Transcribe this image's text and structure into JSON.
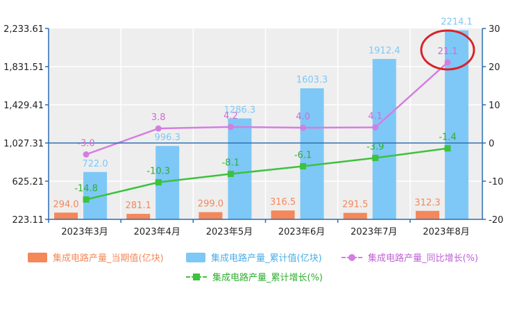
{
  "chart_data": {
    "type": "bar",
    "categories": [
      "2023年3月",
      "2023年4月",
      "2023年5月",
      "2023年6月",
      "2023年7月",
      "2023年8月"
    ],
    "series": [
      {
        "name": "集成电路产量_当期值(亿块)",
        "type": "bar",
        "axis": "left",
        "color": "#f4885a",
        "label_color": "#f4885a",
        "values": [
          294.0,
          281.1,
          299.0,
          316.5,
          291.5,
          312.3
        ],
        "labels": [
          "294.0",
          "281.1",
          "299.0",
          "316.5",
          "291.5",
          "312.3"
        ]
      },
      {
        "name": "集成电路产量_累计值(亿块)",
        "type": "bar",
        "axis": "left",
        "color": "#7dc8f6",
        "label_color": "#7dc8f6",
        "values": [
          722.0,
          996.3,
          1286.3,
          1603.3,
          1912.4,
          2214.1
        ],
        "labels": [
          "722.0",
          "996.3",
          "1286.3",
          "1603.3",
          "1912.4",
          "2214.1"
        ]
      },
      {
        "name": "集成电路产量_同比增长(%)",
        "type": "line",
        "axis": "right",
        "color": "#d37ee0",
        "label_color": "#d06ad6",
        "values": [
          -3.0,
          3.8,
          4.2,
          4.0,
          4.1,
          21.1
        ],
        "labels": [
          "-3.0",
          "3.8",
          "4.2",
          "4.0",
          "4.1",
          "21.1"
        ]
      },
      {
        "name": "集成电路产量_累计增长(%)",
        "type": "line",
        "axis": "right",
        "color": "#3cc23c",
        "label_color": "#2eae2e",
        "values": [
          -14.8,
          -10.3,
          -8.1,
          -6.1,
          -3.9,
          -1.4
        ],
        "labels": [
          "-14.8",
          "-10.3",
          "-8.1",
          "-6.1",
          "-3.9",
          "-1.4"
        ]
      }
    ],
    "y_left": {
      "ticks": [
        "2,233.61",
        "1,831.51",
        "1,429.41",
        "1,027.31",
        "625.21",
        "223.11"
      ],
      "range": [
        223.11,
        2233.61
      ]
    },
    "y_right": {
      "ticks": [
        "30",
        "20",
        "10",
        "0",
        "-10",
        "-20"
      ],
      "range": [
        -20,
        30
      ]
    },
    "grid": true,
    "legend_position": "bottom",
    "annotation": {
      "type": "circle",
      "color": "#d8232a",
      "target": "21.1"
    }
  }
}
